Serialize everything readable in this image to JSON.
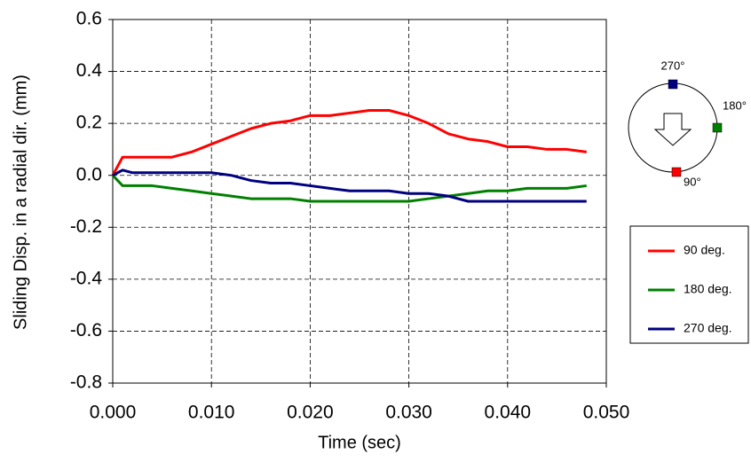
{
  "chart_data": {
    "type": "line",
    "xlabel": "Time (sec)",
    "ylabel": "Sliding Disp. in a radial dir. (mm)",
    "x": [
      0,
      0.001,
      0.002,
      0.004,
      0.006,
      0.008,
      0.01,
      0.012,
      0.014,
      0.016,
      0.018,
      0.02,
      0.022,
      0.024,
      0.026,
      0.028,
      0.03,
      0.032,
      0.034,
      0.036,
      0.038,
      0.04,
      0.042,
      0.044,
      0.046,
      0.048
    ],
    "series": [
      {
        "name": "90 deg.",
        "color": "#ff0000",
        "values": [
          0,
          0.07,
          0.07,
          0.07,
          0.07,
          0.09,
          0.12,
          0.15,
          0.18,
          0.2,
          0.21,
          0.23,
          0.23,
          0.24,
          0.25,
          0.25,
          0.23,
          0.2,
          0.16,
          0.14,
          0.13,
          0.11,
          0.11,
          0.1,
          0.1,
          0.09
        ]
      },
      {
        "name": "180 deg.",
        "color": "#008000",
        "values": [
          0,
          -0.04,
          -0.04,
          -0.04,
          -0.05,
          -0.06,
          -0.07,
          -0.08,
          -0.09,
          -0.09,
          -0.09,
          -0.1,
          -0.1,
          -0.1,
          -0.1,
          -0.1,
          -0.1,
          -0.09,
          -0.08,
          -0.07,
          -0.06,
          -0.06,
          -0.05,
          -0.05,
          -0.05,
          -0.04
        ]
      },
      {
        "name": "270 deg.",
        "color": "#000080",
        "values": [
          0,
          0.02,
          0.01,
          0.01,
          0.01,
          0.01,
          0.01,
          0.0,
          -0.02,
          -0.03,
          -0.03,
          -0.04,
          -0.05,
          -0.06,
          -0.06,
          -0.06,
          -0.07,
          -0.07,
          -0.08,
          -0.1,
          -0.1,
          -0.1,
          -0.1,
          -0.1,
          -0.1,
          -0.1
        ]
      }
    ],
    "xlim": [
      0,
      0.05
    ],
    "xticks": [
      {
        "value": 0,
        "label": "0.000"
      },
      {
        "value": 0.01,
        "label": "0.010"
      },
      {
        "value": 0.02,
        "label": "0.020"
      },
      {
        "value": 0.03,
        "label": "0.030"
      },
      {
        "value": 0.04,
        "label": "0.040"
      },
      {
        "value": 0.05,
        "label": "0.050"
      }
    ],
    "ylim": [
      -0.8,
      0.6
    ],
    "yticks": [
      -0.8,
      -0.6,
      -0.4,
      -0.2,
      {
        "value": 0,
        "label": "0.0"
      },
      0.2,
      0.4,
      0.6
    ],
    "grid": true,
    "legend": "right",
    "annotations": [
      "270°",
      "180°",
      "90°"
    ]
  }
}
